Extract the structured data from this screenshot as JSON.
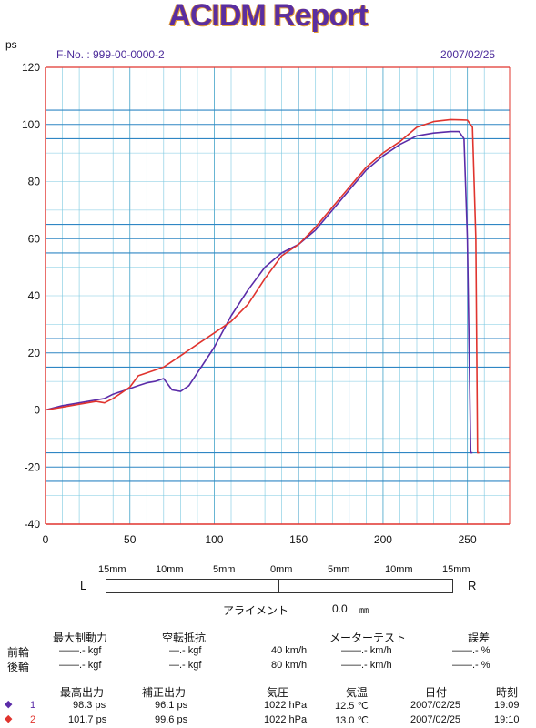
{
  "report": {
    "title": "ACIDM Report",
    "fno": "F-No. : 999-00-0000-2",
    "date": "2007/02/25"
  },
  "chart_data": {
    "type": "line",
    "ylabel": "ps",
    "xlim": [
      0,
      275
    ],
    "ylim": [
      -40,
      120
    ],
    "x_ticks": [
      0,
      50,
      100,
      150,
      200,
      250
    ],
    "y_ticks": [
      -40,
      -20,
      0,
      20,
      40,
      60,
      80,
      100,
      120
    ],
    "grid": true,
    "hlines_blue": [
      105,
      100,
      95,
      65,
      60,
      55,
      25,
      20,
      15,
      -15,
      -20,
      -25
    ],
    "colors": {
      "run1": "#5b2ca8",
      "run2": "#e0342e",
      "grid": "#7ac8e0",
      "hline": "#2f86c4"
    },
    "series": [
      {
        "name": "1",
        "color": "#5b2ca8",
        "x": [
          0,
          10,
          20,
          30,
          35,
          40,
          45,
          50,
          55,
          60,
          65,
          70,
          75,
          80,
          85,
          90,
          100,
          110,
          120,
          130,
          140,
          150,
          160,
          170,
          180,
          190,
          200,
          210,
          220,
          230,
          240,
          245,
          248,
          250,
          252,
          253
        ],
        "y": [
          0,
          1.5,
          2.5,
          3.5,
          4,
          5.5,
          6.5,
          7.5,
          8.5,
          9.5,
          10,
          11,
          7,
          6.5,
          8.5,
          13,
          22,
          33,
          42,
          50,
          55,
          58,
          63,
          70,
          77,
          84,
          89,
          93,
          96,
          97,
          97.5,
          97.5,
          95,
          60,
          -15,
          -15
        ]
      },
      {
        "name": "2",
        "color": "#e0342e",
        "x": [
          0,
          10,
          20,
          30,
          35,
          40,
          45,
          50,
          55,
          60,
          65,
          70,
          80,
          90,
          100,
          110,
          120,
          130,
          140,
          150,
          160,
          170,
          180,
          190,
          200,
          210,
          220,
          230,
          240,
          250,
          253,
          255,
          256,
          257
        ],
        "y": [
          0,
          1,
          2,
          3,
          2.5,
          4,
          6,
          8,
          12,
          13,
          14,
          15,
          19,
          23,
          27,
          31,
          37,
          46,
          54,
          58,
          64,
          71,
          78,
          85,
          90,
          94,
          99,
          101,
          101.7,
          101.5,
          99,
          60,
          -15,
          -15
        ]
      }
    ]
  },
  "alignment": {
    "scale": [
      "15mm",
      "10mm",
      "5mm",
      "0mm",
      "5mm",
      "10mm",
      "15mm"
    ],
    "left": "L",
    "right": "R",
    "label": "アライメント",
    "value": "0.0",
    "unit": "㎜"
  },
  "brake_table": {
    "h_max_brake": "最大制動力",
    "h_idle": "空転抵抗",
    "h_meter": "メーターテスト",
    "h_error": "誤差",
    "rows": [
      {
        "label": "前輪",
        "brake": "――.- kgf",
        "idle": "―.- kgf",
        "speed": "40 km/h",
        "meter": "――.- km/h",
        "error": "――.- %"
      },
      {
        "label": "後輪",
        "brake": "――.- kgf",
        "idle": "―.- kgf",
        "speed": "80 km/h",
        "meter": "――.- km/h",
        "error": "――.- %"
      }
    ]
  },
  "power_table": {
    "h_max_power": "最高出力",
    "h_corrected": "補正出力",
    "h_pressure": "気圧",
    "h_temp": "気温",
    "h_date": "日付",
    "h_time": "時刻",
    "rows": [
      {
        "no": "1",
        "power": "98.3 ps",
        "corrected": "96.1 ps",
        "pressure": "1022 hPa",
        "temp": "12.5 ℃",
        "date": "2007/02/25",
        "time": "19:09",
        "color": "#5b2ca8"
      },
      {
        "no": "2",
        "power": "101.7 ps",
        "corrected": "99.6 ps",
        "pressure": "1022 hPa",
        "temp": "13.0 ℃",
        "date": "2007/02/25",
        "time": "19:10",
        "color": "#e0342e"
      }
    ]
  }
}
